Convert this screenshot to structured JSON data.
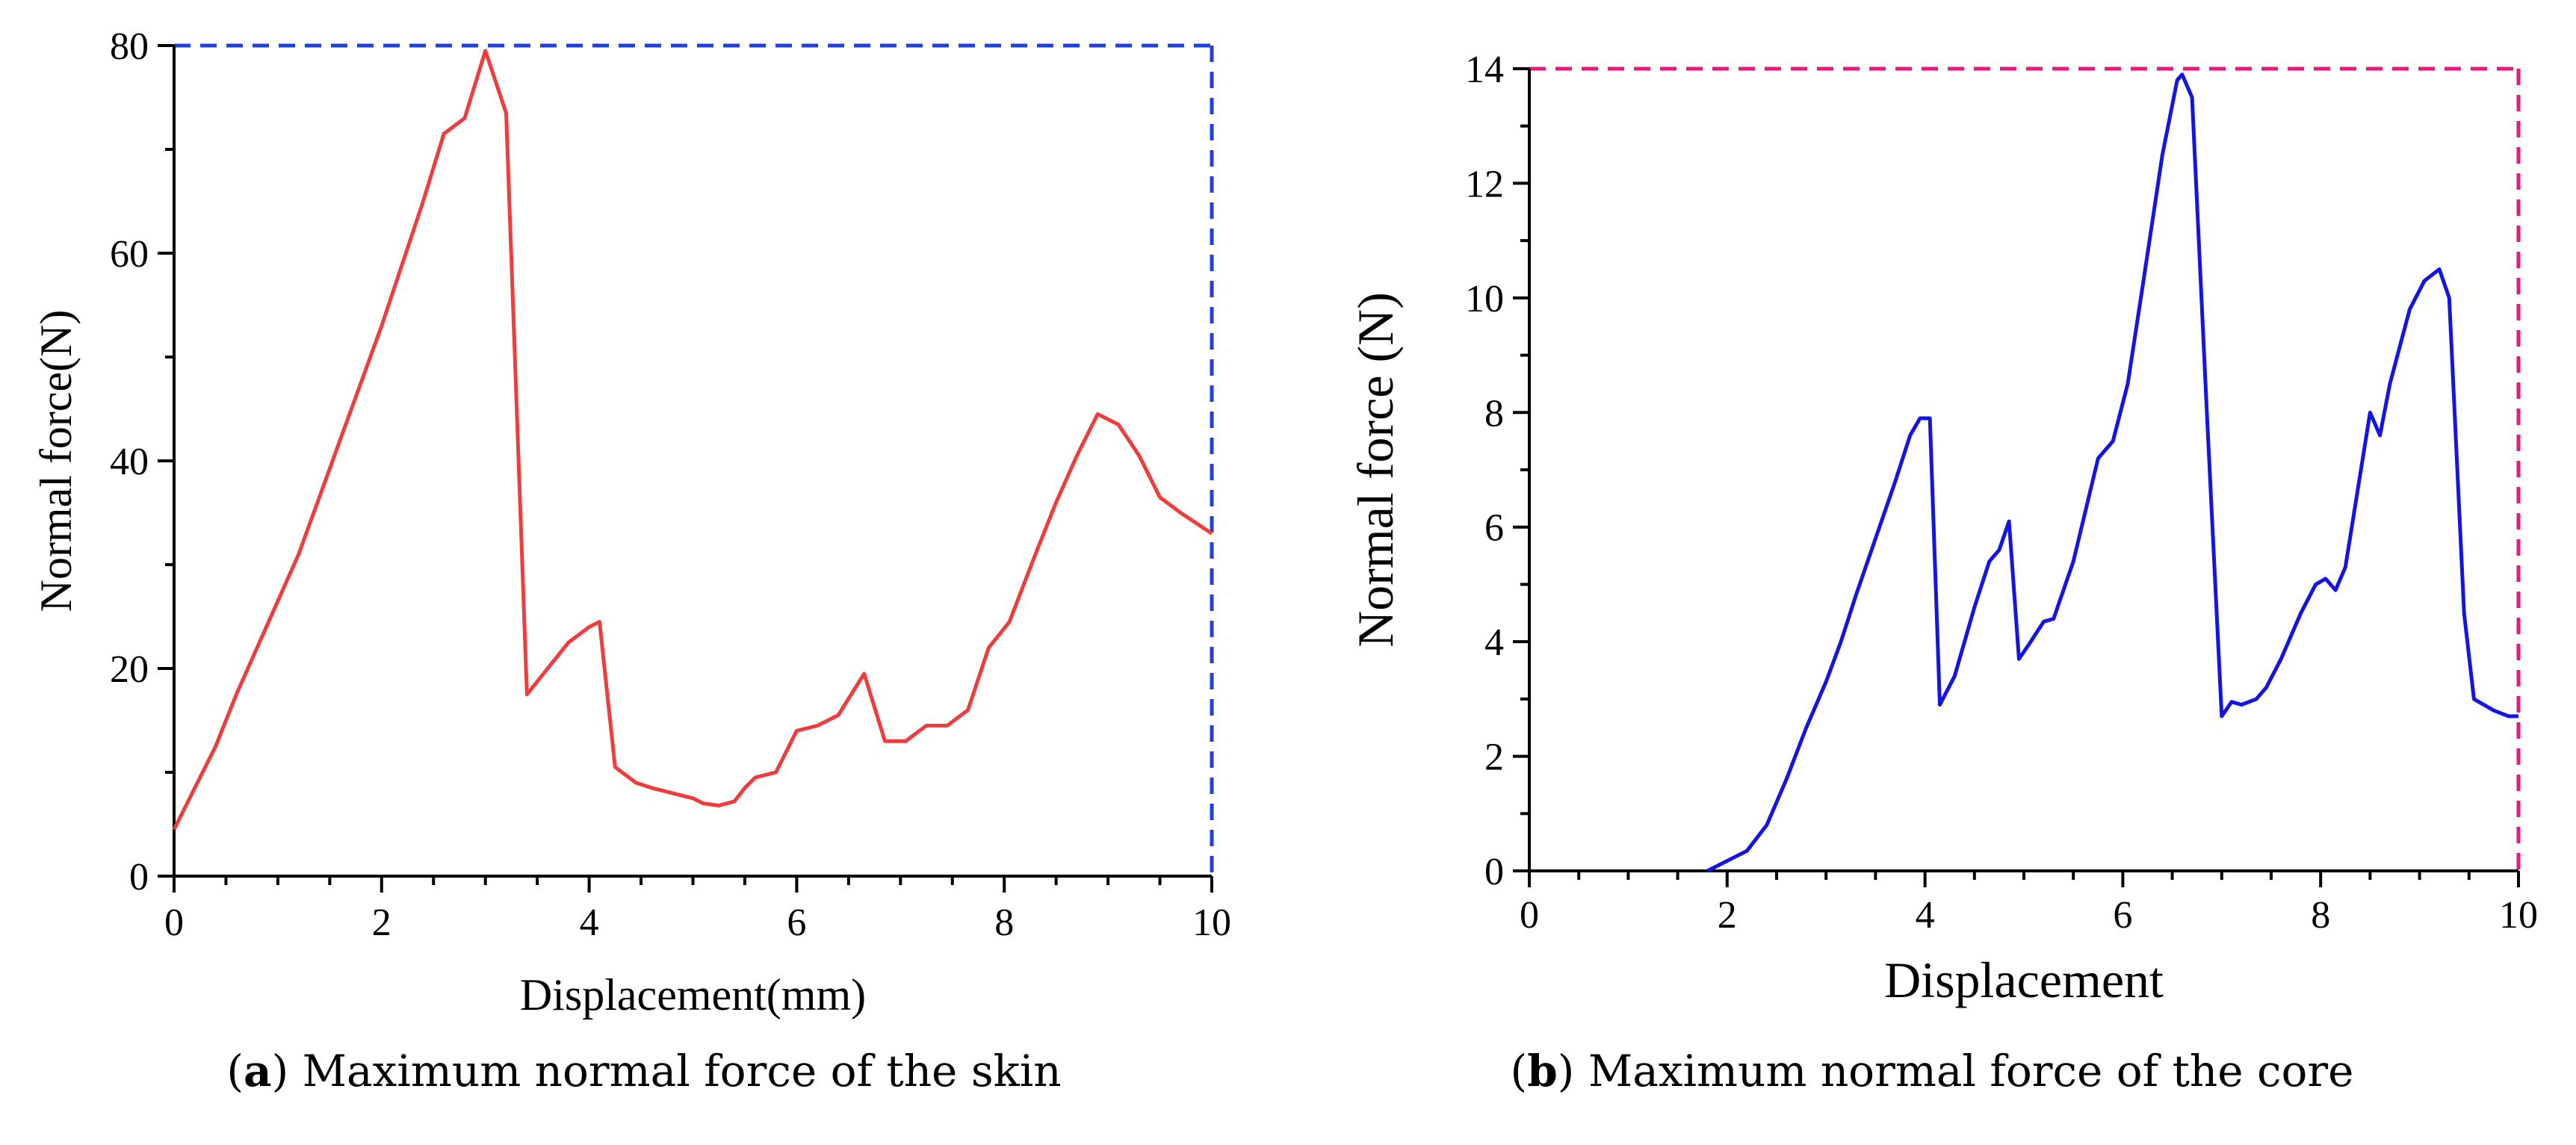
{
  "chart_data": [
    {
      "id": "a",
      "type": "line",
      "panel_letter": "a",
      "caption": ") Maximum normal force of the skin",
      "xlabel": "Displacement(mm)",
      "ylabel": "Normal force(N)",
      "xlim": [
        0,
        10
      ],
      "ylim": [
        0,
        80
      ],
      "xticks": [
        0,
        2,
        4,
        6,
        8,
        10
      ],
      "yticks": [
        0,
        20,
        40,
        60,
        80
      ],
      "x_minor_step": 0.5,
      "y_minor_step": 10,
      "line_color": "#f03c3c",
      "frame_color": "#1f3fdf",
      "series": [
        {
          "name": "skin",
          "x": [
            0,
            0.2,
            0.4,
            0.6,
            0.8,
            1.0,
            1.2,
            1.4,
            1.6,
            1.8,
            2.0,
            2.2,
            2.4,
            2.6,
            2.8,
            3.0,
            3.2,
            3.4,
            3.6,
            3.8,
            4.0,
            4.1,
            4.25,
            4.45,
            4.6,
            4.8,
            5.0,
            5.1,
            5.25,
            5.4,
            5.5,
            5.6,
            5.8,
            6.0,
            6.2,
            6.4,
            6.65,
            6.85,
            7.05,
            7.25,
            7.45,
            7.65,
            7.85,
            8.05,
            8.3,
            8.5,
            8.7,
            8.9,
            9.1,
            9.3,
            9.5,
            9.7,
            10.0
          ],
          "y": [
            4.5,
            8.5,
            12.5,
            17.5,
            22,
            26.5,
            31,
            36.5,
            42,
            47.5,
            53,
            59,
            65,
            71.5,
            73,
            79.5,
            73.5,
            17.5,
            20,
            22.5,
            24,
            24.5,
            10.5,
            9,
            8.5,
            8,
            7.5,
            7,
            6.8,
            7.2,
            8.5,
            9.5,
            10,
            14,
            14.5,
            15.5,
            19.5,
            13,
            13,
            14.5,
            14.5,
            16,
            22,
            24.5,
            31,
            36,
            40.5,
            44.5,
            43.5,
            40.5,
            36.5,
            35,
            33
          ]
        }
      ]
    },
    {
      "id": "b",
      "type": "line",
      "panel_letter": "b",
      "caption": ") Maximum normal force of the core",
      "xlabel": "Displacement",
      "ylabel": "Normal force (N)",
      "xlim": [
        0,
        10
      ],
      "ylim": [
        0,
        14
      ],
      "xticks": [
        0,
        2,
        4,
        6,
        8,
        10
      ],
      "yticks": [
        0,
        2,
        4,
        6,
        8,
        10,
        12,
        14
      ],
      "x_minor_step": 0.5,
      "y_minor_step": 1,
      "line_color": "#1414e6",
      "frame_color": "#e6197d",
      "series": [
        {
          "name": "core",
          "x": [
            1.8,
            2.2,
            2.4,
            2.6,
            2.8,
            3.0,
            3.15,
            3.3,
            3.5,
            3.7,
            3.85,
            3.95,
            4.05,
            4.15,
            4.3,
            4.5,
            4.65,
            4.75,
            4.85,
            4.95,
            5.05,
            5.2,
            5.3,
            5.5,
            5.75,
            5.9,
            6.05,
            6.2,
            6.4,
            6.55,
            6.6,
            6.7,
            6.85,
            7.0,
            7.1,
            7.2,
            7.35,
            7.45,
            7.6,
            7.8,
            7.95,
            8.05,
            8.15,
            8.25,
            8.5,
            8.6,
            8.7,
            8.9,
            9.05,
            9.2,
            9.3,
            9.45,
            9.55,
            9.75,
            9.9,
            10.0
          ],
          "y": [
            0,
            0.35,
            0.8,
            1.6,
            2.5,
            3.3,
            4.0,
            4.8,
            5.8,
            6.8,
            7.6,
            7.9,
            7.9,
            2.9,
            3.4,
            4.6,
            5.4,
            5.6,
            6.1,
            3.7,
            3.95,
            4.35,
            4.4,
            5.4,
            7.2,
            7.5,
            8.5,
            10.2,
            12.5,
            13.8,
            13.9,
            13.5,
            8.0,
            2.7,
            2.95,
            2.9,
            3.0,
            3.2,
            3.7,
            4.5,
            5.0,
            5.1,
            4.9,
            5.3,
            8.0,
            7.6,
            8.5,
            9.8,
            10.3,
            10.5,
            10.0,
            4.5,
            3.0,
            2.8,
            2.7,
            2.7
          ]
        }
      ]
    }
  ]
}
